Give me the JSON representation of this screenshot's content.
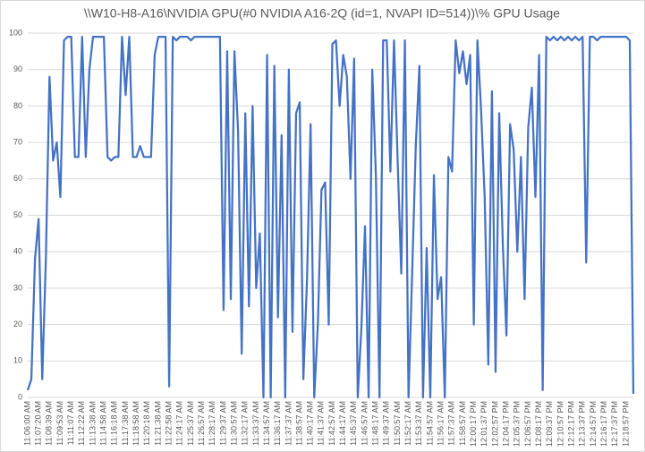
{
  "chart_data": {
    "type": "line",
    "title": "\\\\W10-H8-A16\\NVIDIA GPU(#0 NVIDIA A16-2Q (id=1, NVAPI ID=514))\\% GPU Usage",
    "categories": [
      "11:06:00 AM",
      null,
      null,
      "11:07:20 AM",
      null,
      null,
      "11:08:39 AM",
      null,
      null,
      "11:09:53 AM",
      null,
      null,
      "11:11:07 AM",
      null,
      null,
      "11:12:22 AM",
      null,
      null,
      "11:13:38 AM",
      null,
      null,
      "11:14:58 AM",
      null,
      null,
      "11:16:18 AM",
      null,
      null,
      "11:17:38 AM",
      null,
      null,
      "11:18:58 AM",
      null,
      null,
      "11:20:18 AM",
      null,
      null,
      "11:21:38 AM",
      null,
      null,
      "11:22:58 AM",
      null,
      null,
      "11:24:17 AM",
      null,
      null,
      "11:25:37 AM",
      null,
      null,
      "11:26:57 AM",
      null,
      null,
      "11:28:17 AM",
      null,
      null,
      "11:29:37 AM",
      null,
      null,
      "11:30:57 AM",
      null,
      null,
      "11:32:17 AM",
      null,
      null,
      "11:33:37 AM",
      null,
      null,
      "11:34:57 AM",
      null,
      null,
      "11:36:17 AM",
      null,
      null,
      "11:37:37 AM",
      null,
      null,
      "11:38:57 AM",
      null,
      null,
      "11:40:17 AM",
      null,
      null,
      "11:41:37 AM",
      null,
      null,
      "11:42:57 AM",
      null,
      null,
      "11:44:17 AM",
      null,
      null,
      "11:45:37 AM",
      null,
      null,
      "11:46:57 AM",
      null,
      null,
      "11:48:17 AM",
      null,
      null,
      "11:49:37 AM",
      null,
      null,
      "11:50:57 AM",
      null,
      null,
      "11:52:17 AM",
      null,
      null,
      "11:53:37 AM",
      null,
      null,
      "11:54:57 AM",
      null,
      null,
      "11:56:17 AM",
      null,
      null,
      "11:57:37 AM",
      null,
      null,
      "11:58:57 AM",
      null,
      null,
      "12:00:17 PM",
      null,
      null,
      "12:01:37 PM",
      null,
      null,
      "12:02:57 PM",
      null,
      null,
      "12:04:17 PM",
      null,
      null,
      "12:05:37 PM",
      null,
      null,
      "12:06:57 PM",
      null,
      null,
      "12:08:17 PM",
      null,
      null,
      "12:09:37 PM",
      null,
      null,
      "12:10:57 PM",
      null,
      null,
      "12:12:17 PM",
      null,
      null,
      "12:13:37 PM",
      null,
      null,
      "12:14:57 PM",
      null,
      null,
      "12:16:17 PM",
      null,
      null,
      "12:17:37 PM",
      null,
      null,
      "12:18:57 PM",
      null,
      null
    ],
    "values": [
      2,
      5,
      38,
      49,
      5,
      38,
      88,
      65,
      70,
      55,
      98,
      99,
      99,
      66,
      66,
      99,
      66,
      90,
      99,
      99,
      99,
      99,
      66,
      65,
      66,
      66,
      99,
      83,
      99,
      66,
      66,
      69,
      66,
      66,
      66,
      94,
      99,
      99,
      99,
      3,
      99,
      98,
      99,
      99,
      99,
      98,
      99,
      99,
      99,
      99,
      99,
      99,
      99,
      99,
      24,
      95,
      27,
      95,
      73,
      12,
      78,
      25,
      80,
      30,
      45,
      0,
      94,
      0,
      91,
      22,
      72,
      0,
      90,
      18,
      78,
      81,
      5,
      32,
      75,
      0,
      20,
      57,
      59,
      20,
      97,
      98,
      80,
      94,
      88,
      60,
      93,
      0,
      19,
      47,
      0,
      90,
      61,
      0,
      98,
      98,
      62,
      98,
      65,
      34,
      98,
      0,
      34,
      69,
      91,
      0,
      41,
      0,
      61,
      27,
      33,
      0,
      66,
      62,
      98,
      89,
      95,
      86,
      94,
      20,
      98,
      79,
      55,
      9,
      84,
      7,
      78,
      42,
      17,
      75,
      68,
      40,
      66,
      27,
      74,
      85,
      55,
      94,
      2,
      99,
      98,
      99,
      98,
      99,
      98,
      99,
      98,
      99,
      98,
      99,
      37,
      99,
      99,
      98,
      99,
      99,
      99,
      99,
      99,
      99,
      99,
      99,
      98,
      1
    ],
    "color": "#4472c4",
    "ylim": [
      0,
      100
    ],
    "yticks": [
      0,
      10,
      20,
      30,
      40,
      50,
      60,
      70,
      80,
      90,
      100
    ],
    "grid": true
  }
}
